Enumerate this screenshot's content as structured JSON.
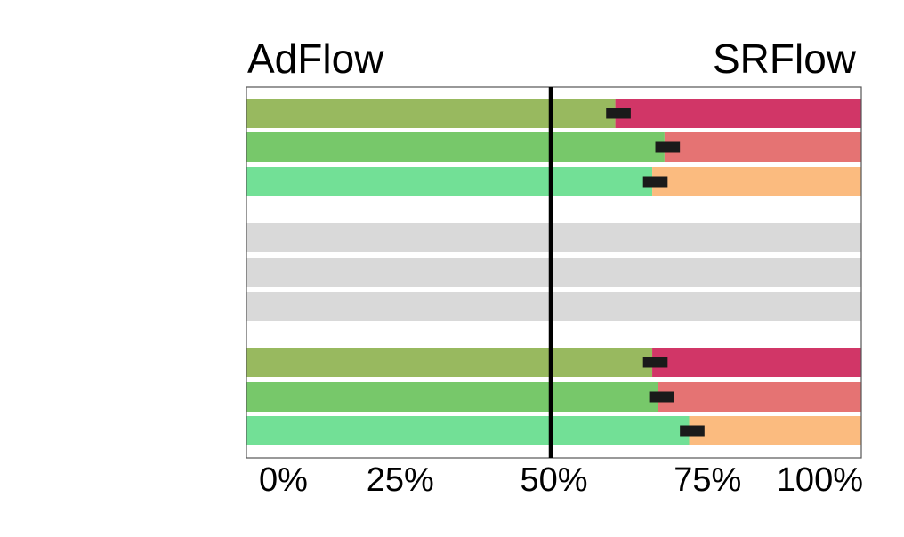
{
  "chart_data": {
    "type": "bar",
    "orientation": "horizontal-stacked",
    "left_label": "AdFlow",
    "right_label": "SRFlow",
    "x_ticks": [
      "0%",
      "25%",
      "50%",
      "75%",
      "100%"
    ],
    "x_tick_values": [
      0,
      25,
      50,
      75,
      100
    ],
    "xlim": [
      0,
      100
    ],
    "reference_line": 50,
    "groups": [
      {
        "rows": [
          {
            "left_value": 60,
            "error_center": 60.5,
            "color_left": "#98b95f",
            "color_right": "#d13667"
          },
          {
            "left_value": 68,
            "error_center": 68.5,
            "color_left": "#77c86a",
            "color_right": "#e57373"
          },
          {
            "left_value": 66,
            "error_center": 66.5,
            "color_left": "#72e096",
            "color_right": "#fbbb7f"
          }
        ]
      },
      {
        "rows": [
          {
            "left_value": null,
            "error_center": null,
            "color_left": "#d9d9d9",
            "color_right": "#d9d9d9"
          },
          {
            "left_value": null,
            "error_center": null,
            "color_left": "#d9d9d9",
            "color_right": "#d9d9d9"
          },
          {
            "left_value": null,
            "error_center": null,
            "color_left": "#d9d9d9",
            "color_right": "#d9d9d9"
          }
        ]
      },
      {
        "rows": [
          {
            "left_value": 66,
            "error_center": 66.5,
            "color_left": "#98b95f",
            "color_right": "#d13667"
          },
          {
            "left_value": 67,
            "error_center": 67.5,
            "color_left": "#77c86a",
            "color_right": "#e57373"
          },
          {
            "left_value": 72,
            "error_center": 72.5,
            "color_left": "#72e096",
            "color_right": "#fbbb7f"
          }
        ]
      }
    ],
    "error_bar_width": 4,
    "grid": false
  }
}
